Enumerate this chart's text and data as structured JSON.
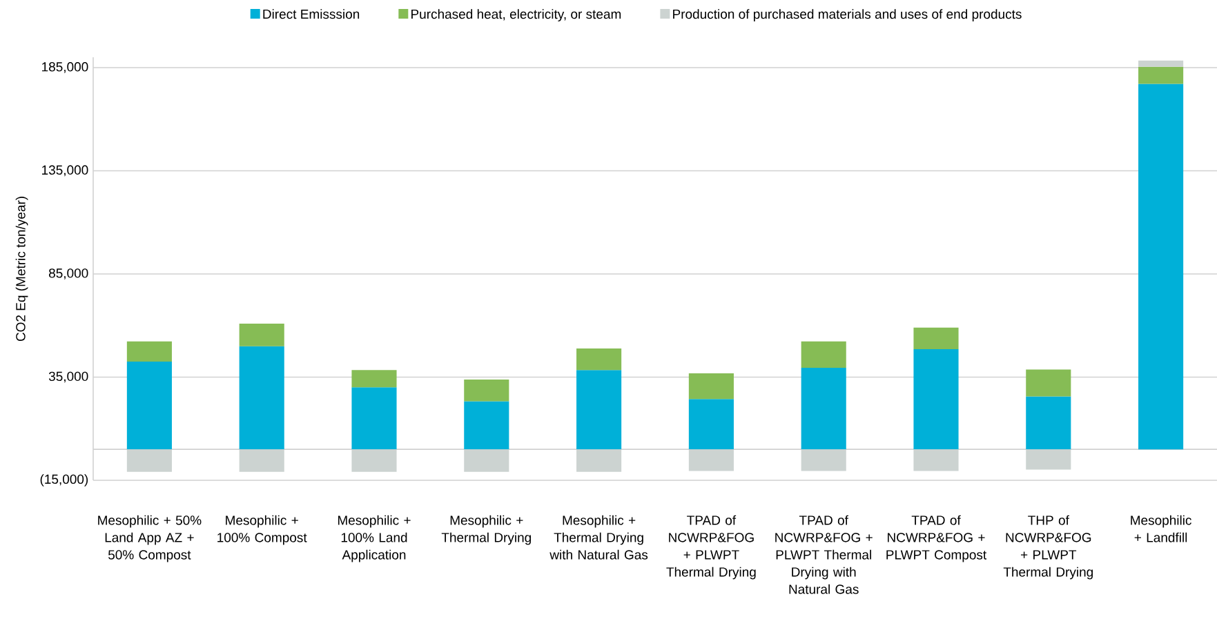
{
  "chart_data": {
    "type": "bar",
    "stacked": true,
    "ylabel": "CO2 Eq (Metric ton/year)",
    "categories": [
      "Mesophilic + 50% Land App AZ + 50% Compost",
      "Mesophilic + 100% Compost",
      "Mesophilic + 100% Land Application",
      "Mesophilic + Thermal Drying",
      "Mesophilic + Thermal Drying with Natural Gas",
      "TPAD of NCWRP&FOG + PLWPT Thermal Drying",
      "TPAD of NCWRP&FOG + PLWPT Thermal Drying with Natural Gas",
      "TPAD of NCWRP&FOG + PLWPT Compost",
      "THP of NCWRP&FOG + PLWPT Thermal Drying",
      "Mesophilic + Landfill"
    ],
    "series": [
      {
        "name": "Direct Emisssion",
        "color": "#00b0d8",
        "values": [
          42500,
          50000,
          30100,
          23300,
          38400,
          24400,
          39500,
          48500,
          25600,
          177100
        ]
      },
      {
        "name": "Purchased heat, electricity, or steam",
        "color": "#86bc55",
        "values": [
          9800,
          10900,
          8300,
          10500,
          10500,
          12400,
          12800,
          10500,
          13100,
          8300
        ]
      },
      {
        "name": "Production of purchased materials and uses of end products",
        "color": "#ccd3d1",
        "values": [
          -10900,
          -10900,
          -10900,
          -10900,
          -10900,
          -10500,
          -10500,
          -10500,
          -9800,
          3000
        ]
      }
    ],
    "ylim": [
      -15000,
      190000
    ],
    "yticks": [
      {
        "value": -15000,
        "label": "(15,000)"
      },
      {
        "value": 0,
        "label": null
      },
      {
        "value": 35000,
        "label": "35,000"
      },
      {
        "value": 85000,
        "label": "85,000"
      },
      {
        "value": 135000,
        "label": "135,000"
      },
      {
        "value": 185000,
        "label": "185,000"
      }
    ],
    "grid": "y",
    "legend": "top"
  }
}
